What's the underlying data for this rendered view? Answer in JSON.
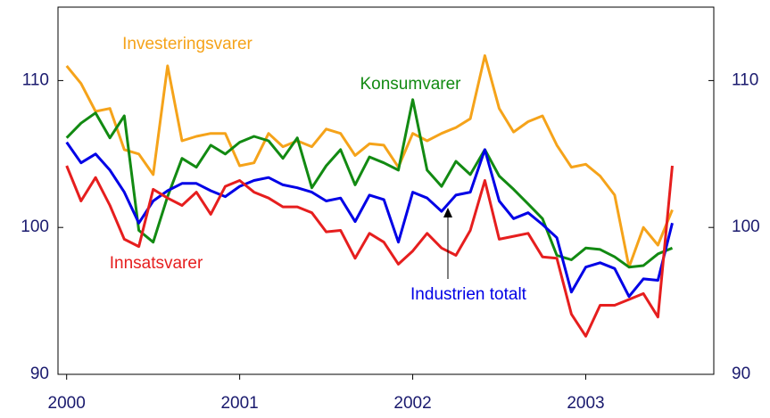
{
  "chart_data": {
    "type": "line",
    "x": [
      2000,
      2000.083,
      2000.167,
      2000.25,
      2000.333,
      2000.417,
      2000.5,
      2000.583,
      2000.667,
      2000.75,
      2000.833,
      2000.917,
      2001,
      2001.083,
      2001.167,
      2001.25,
      2001.333,
      2001.417,
      2001.5,
      2001.583,
      2001.667,
      2001.75,
      2001.833,
      2001.917,
      2002,
      2002.083,
      2002.167,
      2002.25,
      2002.333,
      2002.417,
      2002.5,
      2002.583,
      2002.667,
      2002.75,
      2002.833,
      2002.917,
      2003,
      2003.083,
      2003.167,
      2003.25,
      2003.333,
      2003.417,
      2003.5
    ],
    "series": [
      {
        "name": "Investeringsvarer",
        "color": "#f5a31a",
        "values": [
          111.0,
          109.8,
          107.9,
          108.1,
          105.3,
          105.0,
          103.6,
          111.0,
          105.9,
          106.2,
          106.4,
          106.4,
          104.2,
          104.4,
          106.4,
          105.5,
          105.9,
          105.5,
          106.7,
          106.4,
          104.9,
          105.7,
          105.6,
          104.1,
          106.4,
          105.9,
          106.4,
          106.8,
          107.4,
          111.7,
          108.1,
          106.5,
          107.2,
          107.6,
          105.6,
          104.1,
          104.3,
          103.5,
          102.2,
          97.3,
          100.0,
          98.8,
          101.2
        ]
      },
      {
        "name": "Konsumvarer",
        "color": "#128a12",
        "values": [
          106.1,
          107.1,
          107.8,
          106.1,
          107.6,
          99.8,
          99.0,
          102.1,
          104.7,
          104.1,
          105.6,
          105.0,
          105.8,
          106.2,
          105.9,
          104.7,
          106.1,
          102.7,
          104.2,
          105.3,
          102.9,
          104.8,
          104.4,
          103.9,
          108.7,
          103.9,
          102.8,
          104.5,
          103.6,
          105.3,
          103.5,
          102.6,
          101.6,
          100.6,
          98.1,
          97.8,
          98.6,
          98.5,
          98.0,
          97.3,
          97.4,
          98.2,
          98.6
        ]
      },
      {
        "name": "Industrien totalt",
        "color": "#0000e6",
        "values": [
          105.8,
          104.4,
          105.0,
          103.9,
          102.4,
          100.3,
          101.8,
          102.5,
          103.0,
          103.0,
          102.5,
          102.1,
          102.8,
          103.2,
          103.4,
          102.9,
          102.7,
          102.4,
          101.8,
          102.0,
          100.4,
          102.2,
          101.9,
          99.0,
          102.4,
          102.0,
          101.1,
          102.2,
          102.4,
          105.3,
          101.8,
          100.6,
          101.0,
          100.2,
          99.3,
          95.6,
          97.3,
          97.6,
          97.2,
          95.3,
          96.5,
          96.4,
          100.3
        ]
      },
      {
        "name": "Innsatsvarer",
        "color": "#e61e1e",
        "values": [
          104.2,
          101.8,
          103.4,
          101.5,
          99.2,
          98.7,
          102.6,
          102.0,
          101.5,
          102.4,
          100.9,
          102.8,
          103.2,
          102.4,
          102.0,
          101.4,
          101.4,
          101.0,
          99.7,
          99.8,
          97.9,
          99.6,
          99.0,
          97.5,
          98.4,
          99.6,
          98.6,
          98.1,
          99.8,
          103.2,
          99.2,
          99.4,
          99.6,
          98.0,
          97.9,
          94.1,
          92.6,
          94.7,
          94.7,
          95.1,
          95.5,
          93.9,
          104.2
        ]
      }
    ],
    "xlim": [
      1999.95,
      2003.74
    ],
    "xticks": [
      2000,
      2001,
      2002,
      2003
    ],
    "ylim": [
      90,
      115
    ],
    "yticks": [
      90,
      100,
      110
    ],
    "y2lim": [
      90,
      115
    ],
    "y2ticks": [
      90,
      100,
      110
    ],
    "grid": false
  }
}
